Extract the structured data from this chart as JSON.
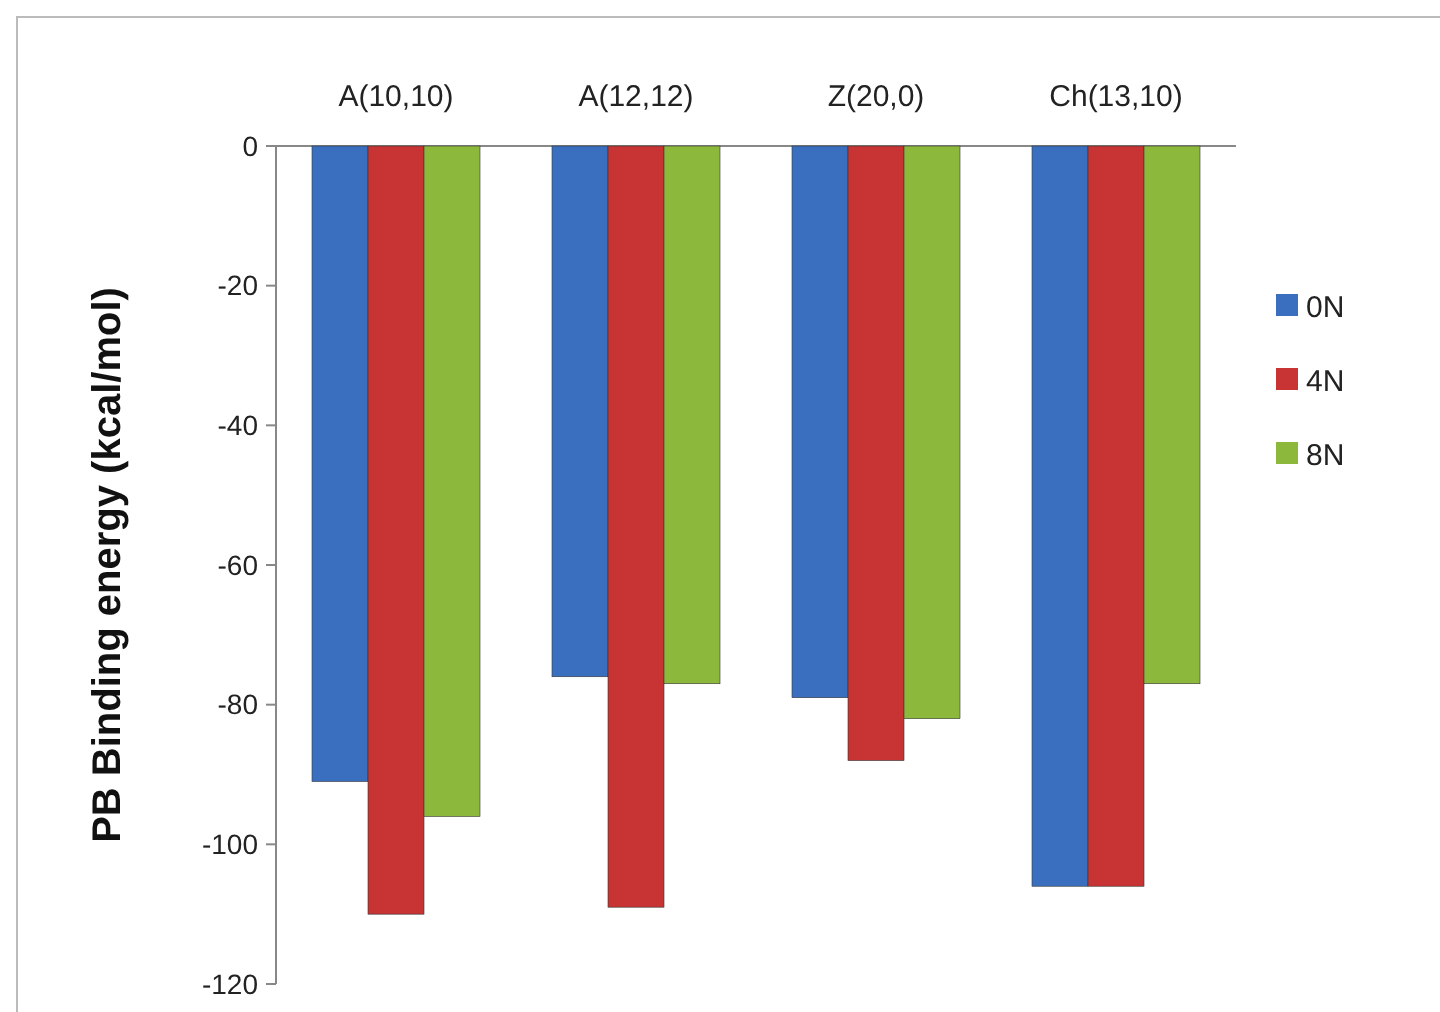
{
  "chart_data": {
    "type": "bar",
    "ylabel": "PB Binding energy (kcal/mol)",
    "categories": [
      "A(10,10)",
      "A(12,12)",
      "Z(20,0)",
      "Ch(13,10)"
    ],
    "series": [
      {
        "name": "0N",
        "color": "#3a6fc0",
        "values": [
          -91,
          -76,
          -79,
          -106
        ]
      },
      {
        "name": "4N",
        "color": "#c83434",
        "values": [
          -110,
          -109,
          -88,
          -106
        ]
      },
      {
        "name": "8N",
        "color": "#8cb83c",
        "values": [
          -96,
          -77,
          -82,
          -77
        ]
      }
    ],
    "ylim": [
      -120,
      0
    ],
    "yticks": [
      -120,
      -100,
      -80,
      -60,
      -40,
      -20,
      0
    ],
    "legend": "right",
    "grid": false
  }
}
